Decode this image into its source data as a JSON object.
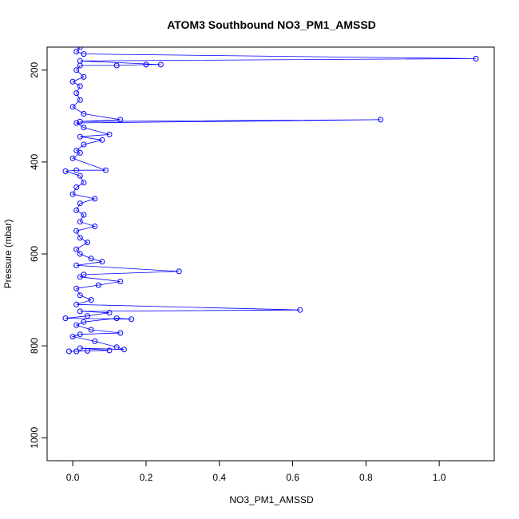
{
  "chart_data": {
    "type": "scatter",
    "title": "ATOM3 Southbound NO3_PM1_AMSSD",
    "xlabel": "NO3_PM1_AMSSD",
    "ylabel": "Pressure (mbar)",
    "xlim": [
      -0.07,
      1.15
    ],
    "ylim": [
      1050,
      150
    ],
    "y_reversed": true,
    "x_ticks": [
      0.0,
      0.2,
      0.4,
      0.6,
      0.8,
      1.0
    ],
    "x_tick_labels": [
      "0.0",
      "0.2",
      "0.4",
      "0.6",
      "0.8",
      "1.0"
    ],
    "y_ticks": [
      200,
      400,
      600,
      800,
      1000
    ],
    "y_tick_labels": [
      "200",
      "400",
      "600",
      "800",
      "1000"
    ],
    "grid": false,
    "legend": "none",
    "marker": "open-circle",
    "connected": true,
    "series_color": "#0000ff",
    "series": [
      {
        "points": [
          [
            0.02,
            150
          ],
          [
            0.01,
            160
          ],
          [
            0.03,
            165
          ],
          [
            1.1,
            175
          ],
          [
            0.02,
            180
          ],
          [
            0.24,
            188
          ],
          [
            0.2,
            188
          ],
          [
            0.12,
            190
          ],
          [
            0.02,
            190
          ],
          [
            0.01,
            200
          ],
          [
            0.03,
            215
          ],
          [
            0.0,
            225
          ],
          [
            0.02,
            235
          ],
          [
            0.01,
            250
          ],
          [
            0.02,
            265
          ],
          [
            0.0,
            280
          ],
          [
            0.03,
            295
          ],
          [
            0.13,
            308
          ],
          [
            0.02,
            312
          ],
          [
            0.84,
            308
          ],
          [
            0.01,
            315
          ],
          [
            0.03,
            325
          ],
          [
            0.1,
            340
          ],
          [
            0.02,
            345
          ],
          [
            0.08,
            352
          ],
          [
            0.03,
            362
          ],
          [
            0.01,
            375
          ],
          [
            0.02,
            380
          ],
          [
            0.0,
            392
          ],
          [
            0.09,
            418
          ],
          [
            0.01,
            418
          ],
          [
            -0.02,
            420
          ],
          [
            0.02,
            430
          ],
          [
            0.03,
            445
          ],
          [
            0.01,
            455
          ],
          [
            0.0,
            470
          ],
          [
            0.06,
            480
          ],
          [
            0.02,
            490
          ],
          [
            0.01,
            505
          ],
          [
            0.03,
            515
          ],
          [
            0.02,
            530
          ],
          [
            0.06,
            540
          ],
          [
            0.01,
            550
          ],
          [
            0.02,
            565
          ],
          [
            0.04,
            575
          ],
          [
            0.01,
            590
          ],
          [
            0.02,
            600
          ],
          [
            0.05,
            610
          ],
          [
            0.08,
            617
          ],
          [
            0.01,
            625
          ],
          [
            0.29,
            638
          ],
          [
            0.03,
            645
          ],
          [
            0.02,
            650
          ],
          [
            0.13,
            660
          ],
          [
            0.07,
            668
          ],
          [
            0.01,
            675
          ],
          [
            0.02,
            690
          ],
          [
            0.05,
            700
          ],
          [
            0.01,
            710
          ],
          [
            0.62,
            722
          ],
          [
            0.02,
            725
          ],
          [
            0.1,
            728
          ],
          [
            0.04,
            735
          ],
          [
            -0.02,
            740
          ],
          [
            0.16,
            742
          ],
          [
            0.12,
            740
          ],
          [
            0.03,
            748
          ],
          [
            0.01,
            755
          ],
          [
            0.05,
            765
          ],
          [
            0.13,
            772
          ],
          [
            0.02,
            775
          ],
          [
            0.0,
            780
          ],
          [
            0.06,
            790
          ],
          [
            0.12,
            803
          ],
          [
            0.14,
            808
          ],
          [
            0.02,
            805
          ],
          [
            0.1,
            810
          ],
          [
            -0.01,
            812
          ],
          [
            0.01,
            812
          ],
          [
            0.04,
            811
          ]
        ]
      }
    ]
  }
}
